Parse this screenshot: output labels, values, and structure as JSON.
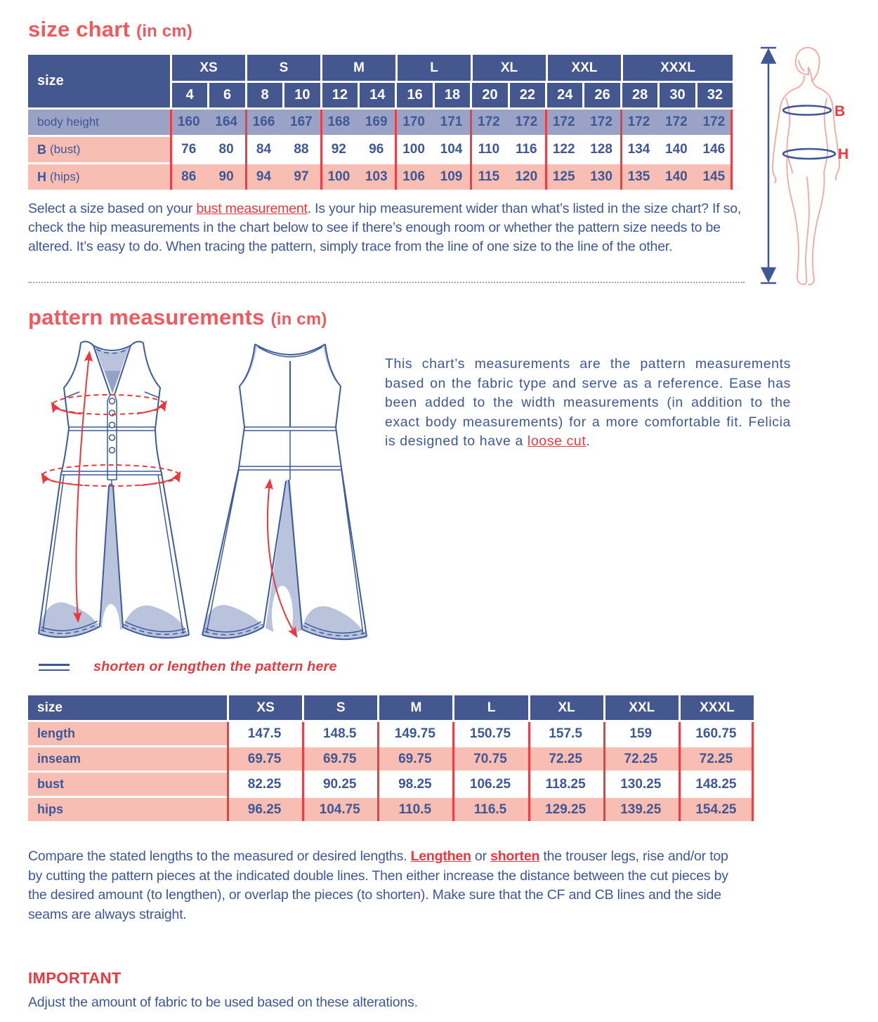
{
  "colors": {
    "accent_coral": "#f2595f",
    "accent_red": "#e9383f",
    "table_header_blue": "#44578e",
    "text_blue": "#3e5795",
    "row_lavender": "#9aa3c5",
    "row_pink": "#f8beb3",
    "drawing_shade": "#b9c3db"
  },
  "size_chart": {
    "title": "size chart",
    "title_suffix": "(in cm)",
    "corner_label": "size",
    "groups": [
      {
        "label": "XS",
        "sizes": [
          "4",
          "6"
        ]
      },
      {
        "label": "S",
        "sizes": [
          "8",
          "10"
        ]
      },
      {
        "label": "M",
        "sizes": [
          "12",
          "14"
        ]
      },
      {
        "label": "L",
        "sizes": [
          "16",
          "18"
        ]
      },
      {
        "label": "XL",
        "sizes": [
          "20",
          "22"
        ]
      },
      {
        "label": "XXL",
        "sizes": [
          "24",
          "26"
        ]
      },
      {
        "label": "XXXL",
        "sizes": [
          "28",
          "30",
          "32"
        ]
      }
    ],
    "rows": [
      {
        "label": "body height",
        "label_bold": "",
        "bg": "lavender",
        "groups": [
          [
            "160",
            "164"
          ],
          [
            "166",
            "167"
          ],
          [
            "168",
            "169"
          ],
          [
            "170",
            "171"
          ],
          [
            "172",
            "172"
          ],
          [
            "172",
            "172"
          ],
          [
            "172",
            "172",
            "172"
          ]
        ]
      },
      {
        "label": "(bust)",
        "label_bold": "B",
        "bg": "white",
        "groups": [
          [
            "76",
            "80"
          ],
          [
            "84",
            "88"
          ],
          [
            "92",
            "96"
          ],
          [
            "100",
            "104"
          ],
          [
            "110",
            "116"
          ],
          [
            "122",
            "128"
          ],
          [
            "134",
            "140",
            "146"
          ]
        ]
      },
      {
        "label": "(hips)",
        "label_bold": "H",
        "bg": "pink",
        "groups": [
          [
            "86",
            "90"
          ],
          [
            "94",
            "97"
          ],
          [
            "100",
            "103"
          ],
          [
            "106",
            "109"
          ],
          [
            "115",
            "120"
          ],
          [
            "125",
            "130"
          ],
          [
            "135",
            "140",
            "145"
          ]
        ]
      }
    ]
  },
  "figure": {
    "bust_label": "B",
    "hips_label": "H"
  },
  "intro_paragraph": {
    "segments": [
      {
        "text": "Select a size based on your "
      },
      {
        "text": "bust measurement",
        "style": "red-underline"
      },
      {
        "text": ". Is your hip measurement wider than what’s listed in the size chart? If so, check the hip measurements in the chart below to see if there’s enough room or whether the pattern size needs to be altered. It’s easy to do. When tracing the pattern, simply trace from the line of one size to the line of the other."
      }
    ]
  },
  "pattern_measurements": {
    "title": "pattern measurements",
    "title_suffix": "(in cm)",
    "description_segments": [
      {
        "text": "This chart’s measurements are the pattern measurements based on the fabric type and serve as a reference. Ease has been added to the width measurements (in addition to the exact body measurements) for a more comfortable fit. Felicia is designed to have a "
      },
      {
        "text": "loose cut",
        "style": "red-underline"
      },
      {
        "text": "."
      }
    ],
    "legend_text": "shorten or lengthen the pattern here",
    "table": {
      "corner_label": "size",
      "columns": [
        "XS",
        "S",
        "M",
        "L",
        "XL",
        "XXL",
        "XXXL"
      ],
      "rows": [
        {
          "label": "length",
          "zebra": "white",
          "values": [
            "147.5",
            "148.5",
            "149.75",
            "150.75",
            "157.5",
            "159",
            "160.75"
          ]
        },
        {
          "label": "inseam",
          "zebra": "pink",
          "values": [
            "69.75",
            "69.75",
            "69.75",
            "70.75",
            "72.25",
            "72.25",
            "72.25"
          ]
        },
        {
          "label": "bust",
          "zebra": "white",
          "values": [
            "82.25",
            "90.25",
            "98.25",
            "106.25",
            "118.25",
            "130.25",
            "148.25"
          ]
        },
        {
          "label": "hips",
          "zebra": "pink",
          "values": [
            "96.25",
            "104.75",
            "110.5",
            "116.5",
            "129.25",
            "139.25",
            "154.25"
          ]
        }
      ]
    }
  },
  "compare_paragraph": {
    "segments": [
      {
        "text": "Compare the stated lengths to the measured or desired lengths. "
      },
      {
        "text": "Lengthen",
        "style": "red-underline-bold"
      },
      {
        "text": " or "
      },
      {
        "text": "shorten",
        "style": "red-underline-bold"
      },
      {
        "text": " the trouser legs, rise and/or top by cutting the pattern pieces at the indicated double lines. Then either increase the distance between the cut pieces by the desired amount (to lengthen), or overlap the pieces (to shorten). Make sure that the CF and CB lines and the side seams are always straight."
      }
    ]
  },
  "important": {
    "heading": "IMPORTANT",
    "text": "Adjust the amount of fabric to be used based on these alterations."
  }
}
